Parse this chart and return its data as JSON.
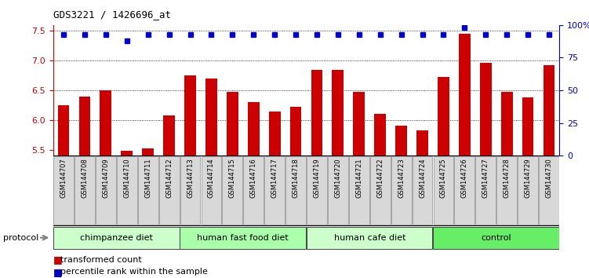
{
  "title": "GDS3221 / 1426696_at",
  "samples": [
    "GSM144707",
    "GSM144708",
    "GSM144709",
    "GSM144710",
    "GSM144711",
    "GSM144712",
    "GSM144713",
    "GSM144714",
    "GSM144715",
    "GSM144716",
    "GSM144717",
    "GSM144718",
    "GSM144719",
    "GSM144720",
    "GSM144721",
    "GSM144722",
    "GSM144723",
    "GSM144724",
    "GSM144725",
    "GSM144726",
    "GSM144727",
    "GSM144728",
    "GSM144729",
    "GSM144730"
  ],
  "bar_values": [
    6.25,
    6.4,
    6.5,
    5.48,
    5.52,
    6.08,
    6.75,
    6.7,
    6.47,
    6.3,
    6.15,
    6.22,
    6.85,
    6.85,
    6.47,
    6.1,
    5.9,
    5.82,
    6.72,
    7.45,
    6.97,
    6.47,
    6.38,
    6.92
  ],
  "percentile_values_pct": [
    93,
    93,
    93,
    88,
    93,
    93,
    93,
    93,
    93,
    93,
    93,
    93,
    93,
    93,
    93,
    93,
    93,
    93,
    93,
    98,
    93,
    93,
    93,
    93
  ],
  "groups": [
    {
      "label": "chimpanzee diet",
      "start": 0,
      "end": 6,
      "color": "#ccffcc"
    },
    {
      "label": "human fast food diet",
      "start": 6,
      "end": 12,
      "color": "#aaffaa"
    },
    {
      "label": "human cafe diet",
      "start": 12,
      "end": 18,
      "color": "#ccffcc"
    },
    {
      "label": "control",
      "start": 18,
      "end": 24,
      "color": "#66ee66"
    }
  ],
  "ylim_left": [
    5.4,
    7.6
  ],
  "ylim_right": [
    0,
    100
  ],
  "yticks_left": [
    5.5,
    6.0,
    6.5,
    7.0,
    7.5
  ],
  "yticks_right": [
    0,
    25,
    50,
    75,
    100
  ],
  "bar_color": "#cc0000",
  "percentile_color": "#0000cc",
  "bar_width": 0.55,
  "grid_values": [
    6.0,
    6.5,
    7.0,
    7.5
  ],
  "legend_bar_label": "transformed count",
  "legend_pct_label": "percentile rank within the sample",
  "protocol_label": "protocol",
  "bg_color": "#ffffff",
  "tick_box_color": "#d8d8d8"
}
